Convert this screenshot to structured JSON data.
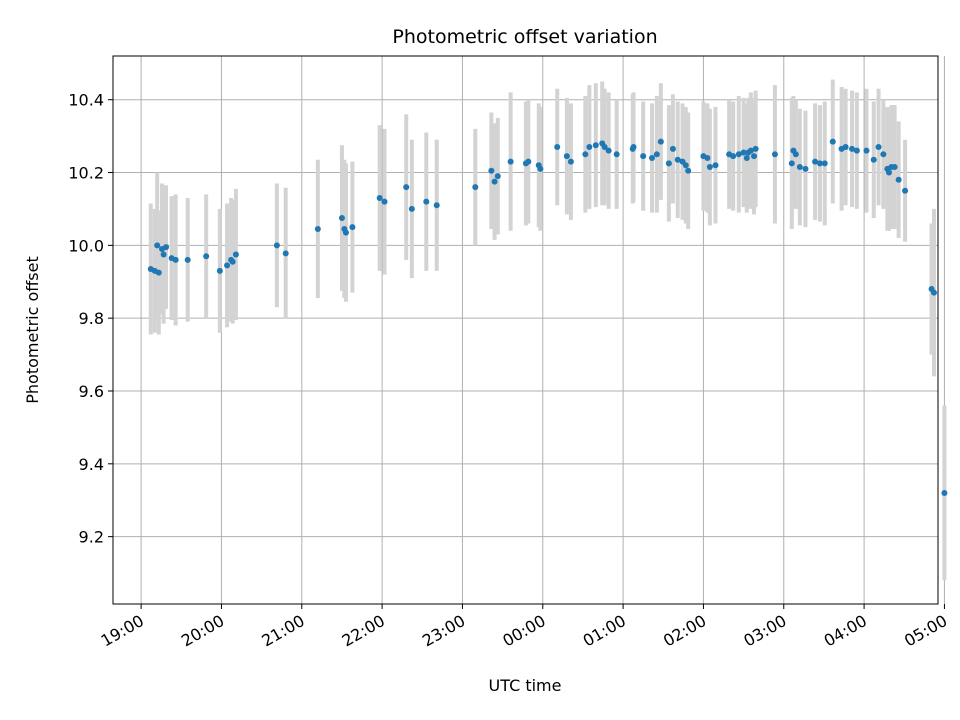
{
  "chart_data": {
    "type": "scatter",
    "title": "Photometric offset variation",
    "xlabel": "UTC time",
    "ylabel": "Photometric offset",
    "xlim": [
      -1.35,
      8.92
    ],
    "ylim": [
      9.015,
      10.52
    ],
    "grid": true,
    "x_ticks": [
      {
        "value": -1,
        "label": "19:00"
      },
      {
        "value": 0,
        "label": "20:00"
      },
      {
        "value": 1,
        "label": "21:00"
      },
      {
        "value": 2,
        "label": "22:00"
      },
      {
        "value": 3,
        "label": "23:00"
      },
      {
        "value": 4,
        "label": "00:00"
      },
      {
        "value": 5,
        "label": "01:00"
      },
      {
        "value": 6,
        "label": "02:00"
      },
      {
        "value": 7,
        "label": "03:00"
      },
      {
        "value": 8,
        "label": "04:00"
      },
      {
        "value": 9,
        "label": "05:00"
      }
    ],
    "y_ticks": [
      {
        "value": 9.2,
        "label": "9.2"
      },
      {
        "value": 9.4,
        "label": "9.4"
      },
      {
        "value": 9.6,
        "label": "9.6"
      },
      {
        "value": 9.8,
        "label": "9.8"
      },
      {
        "value": 10.0,
        "label": "10.0"
      },
      {
        "value": 10.2,
        "label": "10.2"
      },
      {
        "value": 10.4,
        "label": "10.4"
      }
    ],
    "point_color": "#1f77b4",
    "errorbar_color": "#d3d3d3",
    "x_units": "hours relative to 20:00 UTC (x tick labels give clock time)",
    "points": [
      [
        -0.88,
        9.935,
        0.18
      ],
      [
        -0.83,
        9.93,
        0.17
      ],
      [
        -0.8,
        10.0,
        0.2
      ],
      [
        -0.78,
        9.925,
        0.17
      ],
      [
        -0.74,
        9.99,
        0.18
      ],
      [
        -0.72,
        9.975,
        0.19
      ],
      [
        -0.69,
        9.995,
        0.17
      ],
      [
        -0.62,
        9.965,
        0.17
      ],
      [
        -0.57,
        9.96,
        0.18
      ],
      [
        -0.42,
        9.96,
        0.17
      ],
      [
        -0.19,
        9.97,
        0.17
      ],
      [
        -0.02,
        9.93,
        0.17
      ],
      [
        0.07,
        9.945,
        0.17
      ],
      [
        0.12,
        9.96,
        0.17
      ],
      [
        0.14,
        9.955,
        0.17
      ],
      [
        0.18,
        9.975,
        0.18
      ],
      [
        0.69,
        10.0,
        0.17
      ],
      [
        0.8,
        9.978,
        0.18
      ],
      [
        1.2,
        10.045,
        0.19
      ],
      [
        1.5,
        10.075,
        0.2
      ],
      [
        1.53,
        10.045,
        0.19
      ],
      [
        1.55,
        10.035,
        0.19
      ],
      [
        1.63,
        10.05,
        0.18
      ],
      [
        1.97,
        10.13,
        0.2
      ],
      [
        2.03,
        10.12,
        0.2
      ],
      [
        2.3,
        10.16,
        0.2
      ],
      [
        2.37,
        10.1,
        0.19
      ],
      [
        2.55,
        10.12,
        0.19
      ],
      [
        2.68,
        10.11,
        0.18
      ],
      [
        3.16,
        10.16,
        0.16
      ],
      [
        3.36,
        10.205,
        0.16
      ],
      [
        3.4,
        10.175,
        0.16
      ],
      [
        3.44,
        10.19,
        0.16
      ],
      [
        3.6,
        10.23,
        0.19
      ],
      [
        3.79,
        10.225,
        0.17
      ],
      [
        3.82,
        10.23,
        0.17
      ],
      [
        3.95,
        10.22,
        0.17
      ],
      [
        3.97,
        10.21,
        0.17
      ],
      [
        4.18,
        10.27,
        0.16
      ],
      [
        4.3,
        10.245,
        0.16
      ],
      [
        4.35,
        10.23,
        0.16
      ],
      [
        4.53,
        10.25,
        0.16
      ],
      [
        4.58,
        10.27,
        0.17
      ],
      [
        4.66,
        10.275,
        0.17
      ],
      [
        4.74,
        10.28,
        0.17
      ],
      [
        4.77,
        10.27,
        0.16
      ],
      [
        4.82,
        10.26,
        0.16
      ],
      [
        4.92,
        10.25,
        0.15
      ],
      [
        5.12,
        10.265,
        0.15
      ],
      [
        5.13,
        10.27,
        0.15
      ],
      [
        5.25,
        10.245,
        0.15
      ],
      [
        5.36,
        10.24,
        0.15
      ],
      [
        5.42,
        10.25,
        0.16
      ],
      [
        5.47,
        10.285,
        0.16
      ],
      [
        5.57,
        10.225,
        0.16
      ],
      [
        5.62,
        10.265,
        0.15
      ],
      [
        5.68,
        10.235,
        0.16
      ],
      [
        5.74,
        10.23,
        0.16
      ],
      [
        5.78,
        10.22,
        0.16
      ],
      [
        5.81,
        10.205,
        0.16
      ],
      [
        6.0,
        10.245,
        0.15
      ],
      [
        6.05,
        10.24,
        0.15
      ],
      [
        6.08,
        10.215,
        0.16
      ],
      [
        6.15,
        10.22,
        0.16
      ],
      [
        6.32,
        10.25,
        0.15
      ],
      [
        6.37,
        10.245,
        0.15
      ],
      [
        6.44,
        10.25,
        0.16
      ],
      [
        6.5,
        10.255,
        0.15
      ],
      [
        6.54,
        10.24,
        0.15
      ],
      [
        6.56,
        10.255,
        0.15
      ],
      [
        6.59,
        10.26,
        0.16
      ],
      [
        6.63,
        10.245,
        0.16
      ],
      [
        6.65,
        10.265,
        0.16
      ],
      [
        6.89,
        10.25,
        0.19
      ],
      [
        7.1,
        10.225,
        0.18
      ],
      [
        7.12,
        10.26,
        0.15
      ],
      [
        7.15,
        10.25,
        0.15
      ],
      [
        7.2,
        10.215,
        0.16
      ],
      [
        7.27,
        10.21,
        0.16
      ],
      [
        7.39,
        10.23,
        0.16
      ],
      [
        7.45,
        10.225,
        0.16
      ],
      [
        7.51,
        10.225,
        0.17
      ],
      [
        7.61,
        10.285,
        0.17
      ],
      [
        7.72,
        10.265,
        0.17
      ],
      [
        7.77,
        10.27,
        0.16
      ],
      [
        7.85,
        10.265,
        0.16
      ],
      [
        7.91,
        10.26,
        0.16
      ],
      [
        8.03,
        10.26,
        0.17
      ],
      [
        8.12,
        10.235,
        0.16
      ],
      [
        8.18,
        10.27,
        0.16
      ],
      [
        8.24,
        10.25,
        0.15
      ],
      [
        8.29,
        10.21,
        0.17
      ],
      [
        8.31,
        10.2,
        0.16
      ],
      [
        8.34,
        10.215,
        0.17
      ],
      [
        8.38,
        10.215,
        0.17
      ],
      [
        8.43,
        10.18,
        0.16
      ],
      [
        8.51,
        10.15,
        0.14
      ],
      [
        8.84,
        9.88,
        0.18
      ],
      [
        8.87,
        9.87,
        0.23
      ],
      [
        9.0,
        9.32,
        0.24
      ]
    ]
  }
}
